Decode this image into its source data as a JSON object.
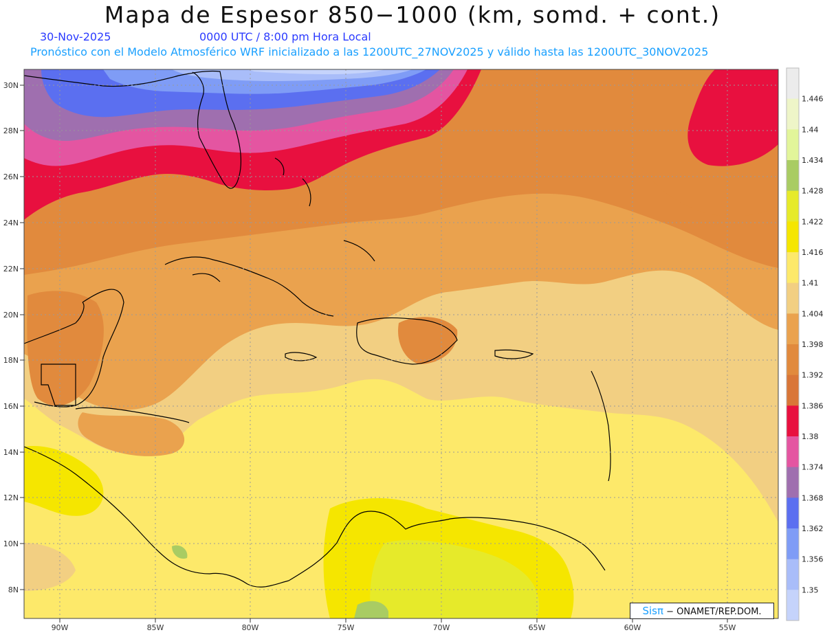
{
  "header": {
    "title": "Mapa de Espesor 850−1000 (km, somd. + cont.)",
    "date": "30-Nov-2025",
    "time": "0000 UTC / 8:00 pm Hora Local",
    "forecast": "Pronóstico con el Modelo Atmosférico WRF inicializado a las 1200UTC_27NOV2025 y válido hasta las   1200UTC_30NOV2025"
  },
  "map": {
    "lat_labels": [
      "30N",
      "28N",
      "26N",
      "24N",
      "22N",
      "20N",
      "18N",
      "16N",
      "14N",
      "12N",
      "10N",
      "8N"
    ],
    "lon_labels": [
      "90W",
      "85W",
      "80W",
      "75W",
      "70W",
      "65W",
      "60W",
      "55W"
    ]
  },
  "colorbar": {
    "labels": [
      "1.446",
      "1.44",
      "1.434",
      "1.428",
      "1.422",
      "1.416",
      "1.41",
      "1.404",
      "1.398",
      "1.392",
      "1.386",
      "1.38",
      "1.374",
      "1.368",
      "1.362",
      "1.356",
      "1.35"
    ],
    "colors": [
      "#ececec",
      "#eef5c8",
      "#e2f59a",
      "#a9cc63",
      "#e6ea2a",
      "#f5e600",
      "#fde96a",
      "#f2cf82",
      "#eaa24e",
      "#e18a3d",
      "#d97638",
      "#e8103f",
      "#e455a1",
      "#9f6faf",
      "#5b6ff0",
      "#7f9cf6",
      "#a9bdf9",
      "#c5d3fb"
    ]
  },
  "badge": {
    "sis": "Sisπ",
    "text": " − ONAMET/REP.DOM."
  }
}
